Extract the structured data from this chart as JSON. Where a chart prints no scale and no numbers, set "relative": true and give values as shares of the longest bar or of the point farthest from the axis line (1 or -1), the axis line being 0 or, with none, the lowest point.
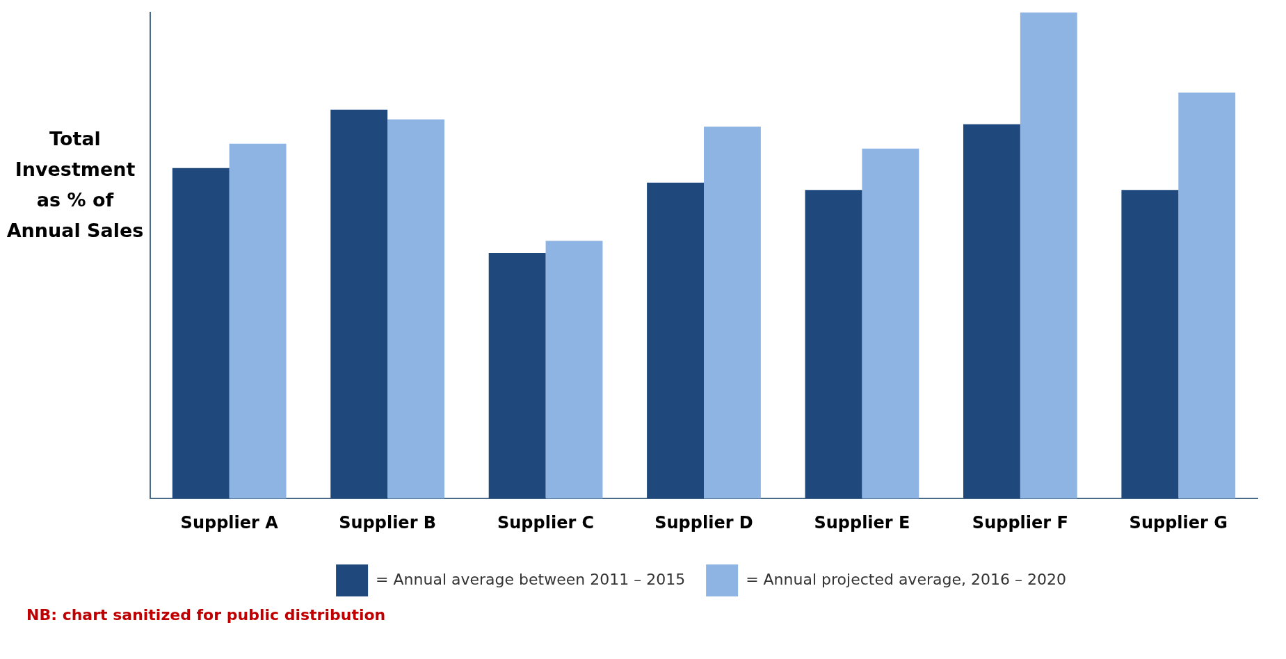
{
  "chart_data": {
    "type": "bar",
    "ylabel": "Total Investment as % of Annual Sales",
    "relative": true,
    "legend": "bottom",
    "grid": false,
    "categories": [
      "Supplier A",
      "Supplier B",
      "Supplier C",
      "Supplier D",
      "Supplier E",
      "Supplier F",
      "Supplier G"
    ],
    "series": [
      {
        "name": "= Annual average between 2011 – 2015",
        "color": "#1f497d",
        "values": [
          0.68,
          0.8,
          0.505,
          0.65,
          0.635,
          0.77,
          0.635
        ]
      },
      {
        "name": "= Annual projected average, 2016 – 2020",
        "color": "#8eb4e3",
        "values": [
          0.73,
          0.78,
          0.53,
          0.765,
          0.72,
          1,
          0.835
        ]
      }
    ],
    "annotations": [
      "NB: chart sanitized for public distribution"
    ]
  }
}
